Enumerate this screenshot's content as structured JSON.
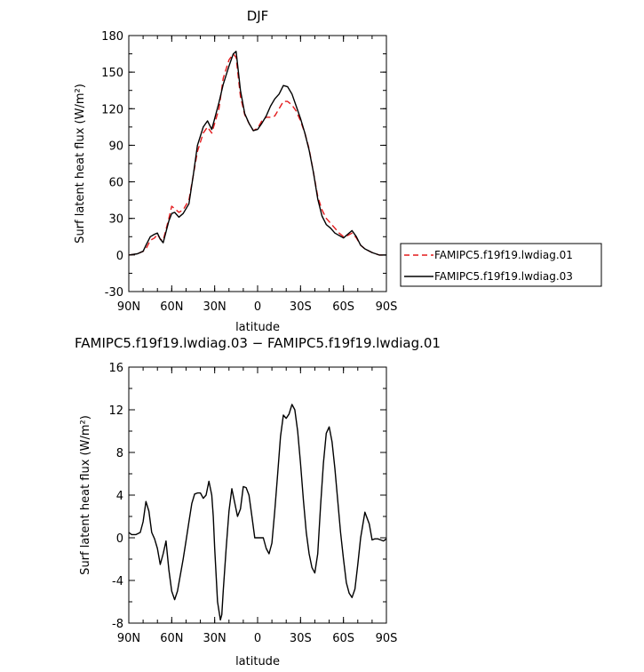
{
  "chart_data": [
    {
      "type": "line",
      "title": "DJF",
      "xlabel": "latitude",
      "ylabel": "Surf latent heat flux (W/m²)",
      "xlim": [
        90,
        -90
      ],
      "ylim": [
        -30,
        180
      ],
      "x_ticks": [
        {
          "value": 90,
          "label": "90N"
        },
        {
          "value": 60,
          "label": "60N"
        },
        {
          "value": 30,
          "label": "30N"
        },
        {
          "value": 0,
          "label": "0"
        },
        {
          "value": -30,
          "label": "30S"
        },
        {
          "value": -60,
          "label": "60S"
        },
        {
          "value": -90,
          "label": "90S"
        }
      ],
      "y_ticks": [
        -30,
        0,
        30,
        60,
        90,
        120,
        150,
        180
      ],
      "legend": "right",
      "series": [
        {
          "name": "FAMIPC5.f19f19.lwdiag.01",
          "color": "#e31a1c",
          "dash": "dashed",
          "x": [
            90,
            84,
            80,
            78,
            75,
            72,
            70,
            68,
            66,
            62,
            60,
            58,
            55,
            52,
            48,
            45,
            42,
            38,
            35,
            32,
            30,
            27,
            24,
            20,
            17,
            15,
            12,
            9,
            6,
            3,
            0,
            -3,
            -6,
            -9,
            -12,
            -15,
            -18,
            -21,
            -24,
            -27,
            -30,
            -33,
            -36,
            -39,
            -42,
            -45,
            -48,
            -51,
            -54,
            -57,
            -60,
            -63,
            -66,
            -69,
            -72,
            -75,
            -80,
            -85,
            -90
          ],
          "y": [
            0,
            1,
            3,
            5,
            12,
            14,
            17,
            13,
            12,
            30,
            40,
            38,
            35,
            37,
            45,
            65,
            85,
            100,
            105,
            100,
            108,
            120,
            145,
            160,
            165,
            162,
            130,
            115,
            108,
            102,
            104,
            110,
            113,
            113,
            114,
            120,
            126,
            126,
            123,
            118,
            110,
            100,
            87,
            68,
            48,
            37,
            30,
            26,
            22,
            18,
            15,
            16,
            18,
            14,
            8,
            5,
            2,
            0,
            0
          ]
        },
        {
          "name": "FAMIPC5.f19f19.lwdiag.03",
          "color": "#000000",
          "dash": "solid",
          "x": [
            90,
            84,
            80,
            78,
            75,
            72,
            70,
            68,
            66,
            62,
            60,
            58,
            55,
            52,
            48,
            45,
            42,
            38,
            35,
            32,
            30,
            27,
            24,
            20,
            17,
            15,
            12,
            9,
            6,
            3,
            0,
            -3,
            -6,
            -9,
            -12,
            -15,
            -18,
            -21,
            -24,
            -27,
            -30,
            -33,
            -36,
            -39,
            -42,
            -45,
            -48,
            -51,
            -54,
            -57,
            -60,
            -63,
            -66,
            -69,
            -72,
            -75,
            -80,
            -85,
            -90
          ],
          "y": [
            0,
            1,
            3,
            8,
            15,
            17,
            18,
            13,
            10,
            28,
            34,
            35,
            31,
            34,
            42,
            65,
            90,
            105,
            110,
            103,
            112,
            125,
            140,
            155,
            165,
            167,
            135,
            116,
            108,
            102,
            103,
            108,
            114,
            122,
            128,
            132,
            139,
            138,
            132,
            122,
            112,
            100,
            86,
            68,
            46,
            32,
            25,
            22,
            18,
            16,
            14,
            17,
            20,
            15,
            8,
            5,
            2,
            0,
            0
          ]
        }
      ]
    },
    {
      "type": "line",
      "title": "FAMIPC5.f19f19.lwdiag.03 − FAMIPC5.f19f19.lwdiag.01",
      "xlabel": "latitude",
      "ylabel": "Surf latent heat flux (W/m²)",
      "xlim": [
        90,
        -90
      ],
      "ylim": [
        -8,
        16
      ],
      "x_ticks": [
        {
          "value": 90,
          "label": "90N"
        },
        {
          "value": 60,
          "label": "60N"
        },
        {
          "value": 30,
          "label": "30N"
        },
        {
          "value": 0,
          "label": "0"
        },
        {
          "value": -30,
          "label": "30S"
        },
        {
          "value": -60,
          "label": "60S"
        },
        {
          "value": -90,
          "label": "90S"
        }
      ],
      "y_ticks": [
        -8,
        -4,
        0,
        4,
        8,
        12,
        16
      ],
      "series": [
        {
          "color": "#000000",
          "dash": "solid",
          "x": [
            90,
            88,
            85,
            82,
            80,
            78,
            76,
            74,
            72,
            70,
            68,
            66,
            64,
            62,
            60,
            58,
            56,
            54,
            52,
            50,
            48,
            46,
            44,
            42,
            40,
            38,
            36,
            34,
            32,
            31,
            30,
            28,
            26,
            25,
            24,
            22,
            20,
            18,
            16,
            14,
            12,
            10,
            8,
            6,
            4,
            2,
            0,
            -2,
            -4,
            -6,
            -8,
            -10,
            -12,
            -14,
            -16,
            -18,
            -20,
            -22,
            -24,
            -26,
            -28,
            -30,
            -32,
            -34,
            -36,
            -38,
            -40,
            -42,
            -44,
            -46,
            -48,
            -50,
            -52,
            -54,
            -56,
            -58,
            -60,
            -62,
            -64,
            -66,
            -68,
            -70,
            -72,
            -75,
            -78,
            -80,
            -82,
            -84,
            -86,
            -88,
            -90
          ],
          "y": [
            0.5,
            0.3,
            0.3,
            0.5,
            1.5,
            3.4,
            2.5,
            0.5,
            -0.1,
            -1.0,
            -2.5,
            -1.5,
            -0.3,
            -3.0,
            -5.0,
            -5.8,
            -5.0,
            -3.5,
            -2.0,
            -0.3,
            1.5,
            3.2,
            4.1,
            4.2,
            4.2,
            3.7,
            4.0,
            5.3,
            4.0,
            2.0,
            -1.0,
            -6.0,
            -7.7,
            -7.2,
            -5.0,
            -1.0,
            2.5,
            4.6,
            3.3,
            2.0,
            2.7,
            4.8,
            4.7,
            4.0,
            2.0,
            0.0,
            0.0,
            0.0,
            0.0,
            -1.0,
            -1.5,
            -0.5,
            2.5,
            6.0,
            9.5,
            11.5,
            11.2,
            11.6,
            12.5,
            12.0,
            10.0,
            7.0,
            3.5,
            0.5,
            -1.5,
            -2.8,
            -3.3,
            -1.5,
            3.0,
            7.0,
            9.8,
            10.4,
            9.0,
            6.5,
            3.5,
            0.5,
            -2.0,
            -4.2,
            -5.2,
            -5.6,
            -4.8,
            -2.5,
            0.0,
            2.4,
            1.3,
            -0.2,
            -0.1,
            -0.1,
            -0.2,
            -0.3,
            -0.1
          ]
        }
      ]
    }
  ]
}
